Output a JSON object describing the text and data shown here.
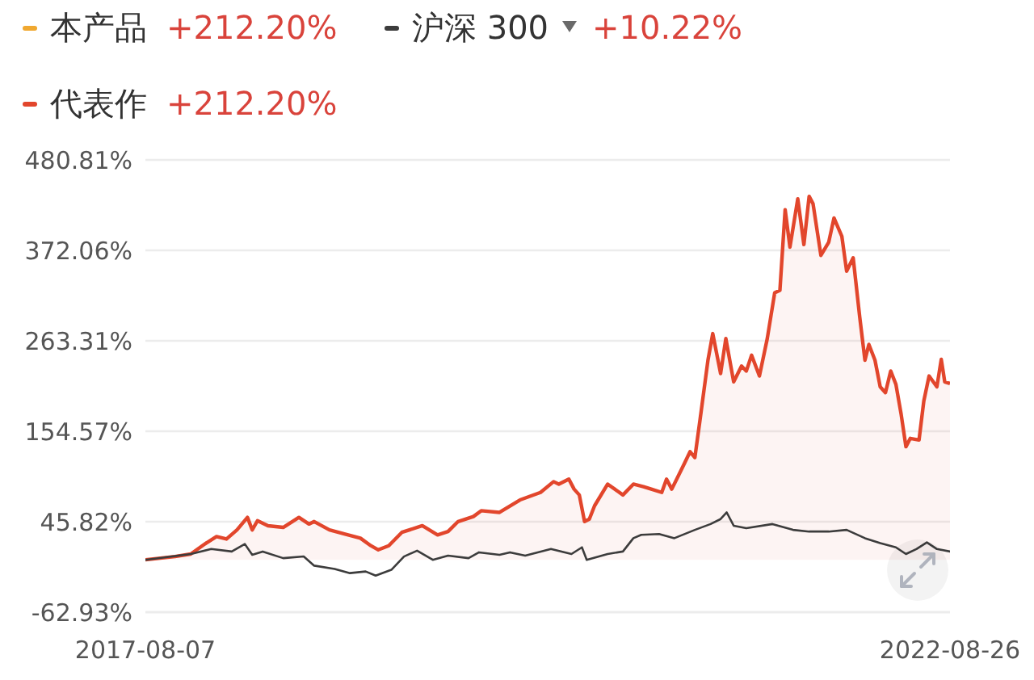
{
  "chart_data": {
    "type": "line",
    "legend": "top left",
    "grid": "y",
    "marker": "none",
    "line_style": "solid",
    "annotations": [
      "+212.20%",
      "+10.22%",
      "+212.20%"
    ],
    "xlim": [
      "2017-08-07",
      "2022-08-26"
    ],
    "xticks": [
      "2017-08-07",
      "2022-08-26"
    ],
    "ylim": [
      -62.93,
      480.81
    ],
    "yticks": [
      {
        "value": 480.81,
        "label": "480.81%"
      },
      {
        "value": 372.06,
        "label": "372.06%"
      },
      {
        "value": 263.31,
        "label": "263.31%"
      },
      {
        "value": 154.57,
        "label": "154.57%"
      },
      {
        "value": 45.82,
        "label": "45.82%"
      },
      {
        "value": -62.93,
        "label": "-62.93%"
      }
    ],
    "x": [
      "2017-08-07",
      "2017-10-14",
      "2017-11-19",
      "2017-12-24",
      "2018-01-17",
      "2018-02-09",
      "2018-03-05",
      "2018-03-29",
      "2018-04-09",
      "2018-04-21",
      "2018-05-15",
      "2018-06-19",
      "2018-07-25",
      "2018-08-17",
      "2018-08-29",
      "2018-10-03",
      "2018-11-08",
      "2018-12-13",
      "2019-01-06",
      "2019-01-23",
      "2019-02-16",
      "2019-03-18",
      "2019-05-04",
      "2019-06-08",
      "2019-07-02",
      "2019-07-25",
      "2019-08-29",
      "2019-09-16",
      "2019-10-28",
      "2019-12-14",
      "2020-01-30",
      "2020-02-29",
      "2020-03-12",
      "2020-04-04",
      "2020-04-16",
      "2020-04-28",
      "2020-05-10",
      "2020-05-21",
      "2020-06-02",
      "2020-07-02",
      "2020-08-06",
      "2020-08-30",
      "2020-09-22",
      "2020-10-10",
      "2020-11-03",
      "2020-11-14",
      "2020-11-26",
      "2020-12-14",
      "2020-12-26",
      "2021-01-07",
      "2021-01-18",
      "2021-01-30",
      "2021-02-17",
      "2021-02-28",
      "2021-03-18",
      "2021-03-30",
      "2021-04-17",
      "2021-05-05",
      "2021-05-16",
      "2021-05-28",
      "2021-06-15",
      "2021-07-03",
      "2021-07-20",
      "2021-08-01",
      "2021-08-13",
      "2021-08-24",
      "2021-09-11",
      "2021-09-25",
      "2021-10-07",
      "2021-10-16",
      "2021-11-03",
      "2021-11-21",
      "2021-12-03",
      "2021-12-21",
      "2022-01-01",
      "2022-01-16",
      "2022-01-31",
      "2022-02-12",
      "2022-02-21",
      "2022-03-07",
      "2022-03-19",
      "2022-03-31",
      "2022-04-12",
      "2022-04-24",
      "2022-05-06",
      "2022-05-17",
      "2022-05-27",
      "2022-06-16",
      "2022-06-27",
      "2022-07-09",
      "2022-07-27",
      "2022-08-06",
      "2022-08-14",
      "2022-08-26"
    ],
    "series": [
      {
        "name": "本产品",
        "color": "#f0a830",
        "values": [
          null,
          null,
          null,
          null,
          null,
          null,
          null,
          null,
          null,
          null,
          null,
          null,
          null,
          null,
          null,
          null,
          null,
          null,
          null,
          null,
          null,
          null,
          null,
          null,
          null,
          null,
          null,
          null,
          null,
          null,
          null,
          null,
          null,
          null,
          null,
          null,
          null,
          null,
          null,
          null,
          null,
          null,
          null,
          null,
          null,
          null,
          null,
          null,
          null,
          null,
          null,
          null,
          null,
          null,
          null,
          null,
          null,
          null,
          null,
          null,
          null,
          null,
          null,
          null,
          null,
          null,
          null,
          null,
          null,
          null,
          null,
          null,
          null,
          null,
          null,
          null,
          null,
          null,
          null,
          null,
          null,
          null,
          null,
          null,
          null,
          null,
          null,
          null,
          null,
          null,
          null,
          null,
          null,
          null
        ]
      },
      {
        "name": "沪深 300",
        "color": "#3c3c3c",
        "x": [
          "2017-08-07",
          "2017-11-19",
          "2018-01-05",
          "2018-02-21",
          "2018-03-23",
          "2018-04-09",
          "2018-05-03",
          "2018-06-19",
          "2018-08-05",
          "2018-08-29",
          "2018-10-15",
          "2018-11-19",
          "2018-12-25",
          "2019-01-17",
          "2019-02-22",
          "2019-03-23",
          "2019-04-22",
          "2019-05-28",
          "2019-07-02",
          "2019-08-18",
          "2019-09-11",
          "2019-10-28",
          "2019-11-21",
          "2019-12-26",
          "2020-02-23",
          "2020-04-10",
          "2020-05-04",
          "2020-05-15",
          "2020-07-02",
          "2020-08-06",
          "2020-08-30",
          "2020-09-17",
          "2020-10-28",
          "2020-12-02",
          "2021-01-18",
          "2021-02-23",
          "2021-03-18",
          "2021-04-01",
          "2021-04-17",
          "2021-05-16",
          "2021-07-15",
          "2021-08-31",
          "2021-10-07",
          "2021-11-21",
          "2022-01-01",
          "2022-02-12",
          "2022-03-19",
          "2022-04-24",
          "2022-05-17",
          "2022-06-10",
          "2022-07-04",
          "2022-07-27",
          "2022-08-26"
        ],
        "values": [
          0,
          7,
          13,
          10,
          19,
          6,
          10,
          2,
          4,
          -7,
          -11,
          -16,
          -14,
          -19,
          -12,
          4,
          11,
          0,
          5,
          2,
          9,
          6,
          9,
          5,
          13,
          7,
          15,
          0,
          7,
          10,
          26,
          30,
          31,
          26,
          36,
          43,
          49,
          57,
          41,
          38,
          43,
          36,
          34,
          34,
          36,
          26,
          20,
          15,
          7,
          13,
          21,
          13,
          10
        ]
      },
      {
        "name": "代表作",
        "type": "area",
        "color": "#e2462c",
        "values": [
          0,
          4,
          7,
          20,
          28,
          25,
          36,
          51,
          36,
          47,
          41,
          39,
          51,
          43,
          46,
          36,
          31,
          26,
          17,
          12,
          17,
          33,
          41,
          30,
          34,
          46,
          52,
          59,
          57,
          72,
          81,
          94,
          91,
          97,
          85,
          78,
          46,
          49,
          65,
          91,
          78,
          91,
          88,
          85,
          81,
          97,
          85,
          104,
          117,
          130,
          123,
          169,
          240,
          272,
          224,
          266,
          214,
          233,
          227,
          246,
          221,
          266,
          321,
          324,
          421,
          376,
          434,
          379,
          437,
          428,
          366,
          382,
          411,
          389,
          347,
          363,
          292,
          240,
          259,
          240,
          208,
          201,
          227,
          211,
          175,
          136,
          146,
          144,
          191,
          221,
          208,
          241,
          214,
          212
        ]
      }
    ]
  }
}
